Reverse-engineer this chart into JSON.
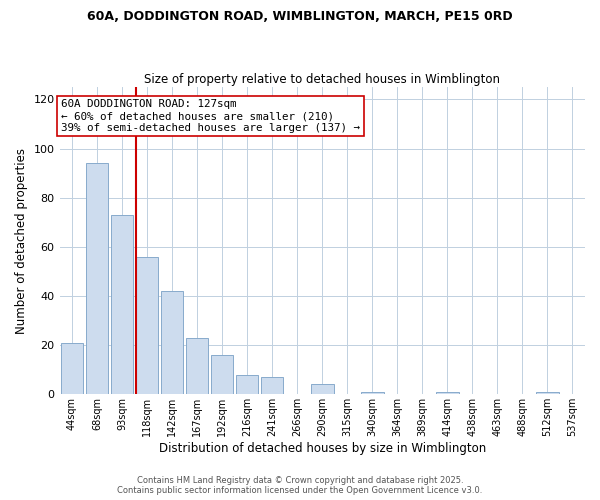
{
  "title1": "60A, DODDINGTON ROAD, WIMBLINGTON, MARCH, PE15 0RD",
  "title2": "Size of property relative to detached houses in Wimblington",
  "xlabel": "Distribution of detached houses by size in Wimblington",
  "ylabel": "Number of detached properties",
  "bar_labels": [
    "44sqm",
    "68sqm",
    "93sqm",
    "118sqm",
    "142sqm",
    "167sqm",
    "192sqm",
    "216sqm",
    "241sqm",
    "266sqm",
    "290sqm",
    "315sqm",
    "340sqm",
    "364sqm",
    "389sqm",
    "414sqm",
    "438sqm",
    "463sqm",
    "488sqm",
    "512sqm",
    "537sqm"
  ],
  "bar_values": [
    21,
    94,
    73,
    56,
    42,
    23,
    16,
    8,
    7,
    0,
    4,
    0,
    1,
    0,
    0,
    1,
    0,
    0,
    0,
    1,
    0
  ],
  "bar_color": "#cddcee",
  "bar_edge_color": "#88aacc",
  "ylim": [
    0,
    125
  ],
  "yticks": [
    0,
    20,
    40,
    60,
    80,
    100,
    120
  ],
  "annotation_line1": "60A DODDINGTON ROAD: 127sqm",
  "annotation_line2": "← 60% of detached houses are smaller (210)",
  "annotation_line3": "39% of semi-detached houses are larger (137) →",
  "vline_color": "#cc0000",
  "footer1": "Contains HM Land Registry data © Crown copyright and database right 2025.",
  "footer2": "Contains public sector information licensed under the Open Government Licence v3.0.",
  "background_color": "#ffffff",
  "grid_color": "#c0d0e0"
}
